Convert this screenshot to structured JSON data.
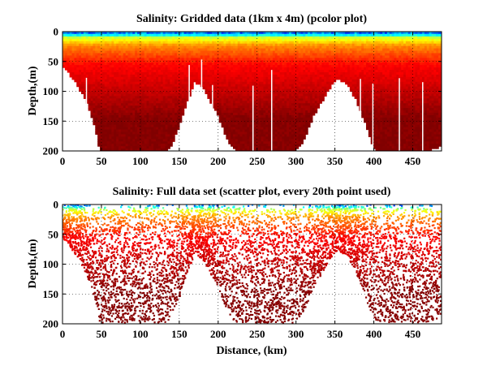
{
  "chart_data": [
    {
      "type": "heatmap",
      "variant": "pcolor",
      "title": "Salinity: Gridded data (1km x 4m) (pcolor plot)",
      "xlabel": "",
      "ylabel": "Depth,(m)",
      "xlim": [
        0,
        487
      ],
      "ylim": [
        0,
        200
      ],
      "y_reversed": true,
      "grid": "dotted",
      "x_ticks": [
        0,
        50,
        100,
        150,
        200,
        250,
        300,
        350,
        400,
        450
      ],
      "y_ticks": [
        0,
        50,
        100,
        150,
        200
      ],
      "colormap": "jet",
      "bottom_profile": {
        "distance_km": [
          0,
          8,
          20,
          32,
          42,
          48,
          100,
          132,
          140,
          152,
          162,
          170,
          180,
          200,
          212,
          222,
          240,
          300,
          310,
          322,
          338,
          348,
          356,
          366,
          376,
          388,
          400,
          410,
          440,
          470,
          487
        ],
        "max_depth_m": [
          55,
          68,
          90,
          120,
          160,
          198,
          198,
          198,
          190,
          150,
          110,
          82,
          92,
          140,
          180,
          198,
          198,
          198,
          180,
          140,
          105,
          82,
          78,
          88,
          110,
          150,
          195,
          198,
          198,
          198,
          190
        ]
      },
      "salinity_pattern": [
        {
          "depth_m": 0,
          "level": "fresh (blue)"
        },
        {
          "depth_m": 6,
          "level": "cyan"
        },
        {
          "depth_m": 15,
          "level": "yellow"
        },
        {
          "depth_m": 30,
          "level": "orange"
        },
        {
          "depth_m": 60,
          "level": "red"
        },
        {
          "depth_m": 120,
          "level": "dark red"
        }
      ]
    },
    {
      "type": "scatter",
      "variant": "colored scatter",
      "title": "Salinity: Full data set (scatter plot, every 20th point used)",
      "xlabel": "Distance, (km)",
      "ylabel": "Depth,(m)",
      "xlim": [
        0,
        487
      ],
      "ylim": [
        0,
        200
      ],
      "y_reversed": true,
      "grid": "dotted",
      "x_ticks": [
        0,
        50,
        100,
        150,
        200,
        250,
        300,
        350,
        400,
        450
      ],
      "y_ticks": [
        0,
        50,
        100,
        150,
        200
      ],
      "colormap": "jet",
      "sampling": "every 20th point"
    }
  ]
}
